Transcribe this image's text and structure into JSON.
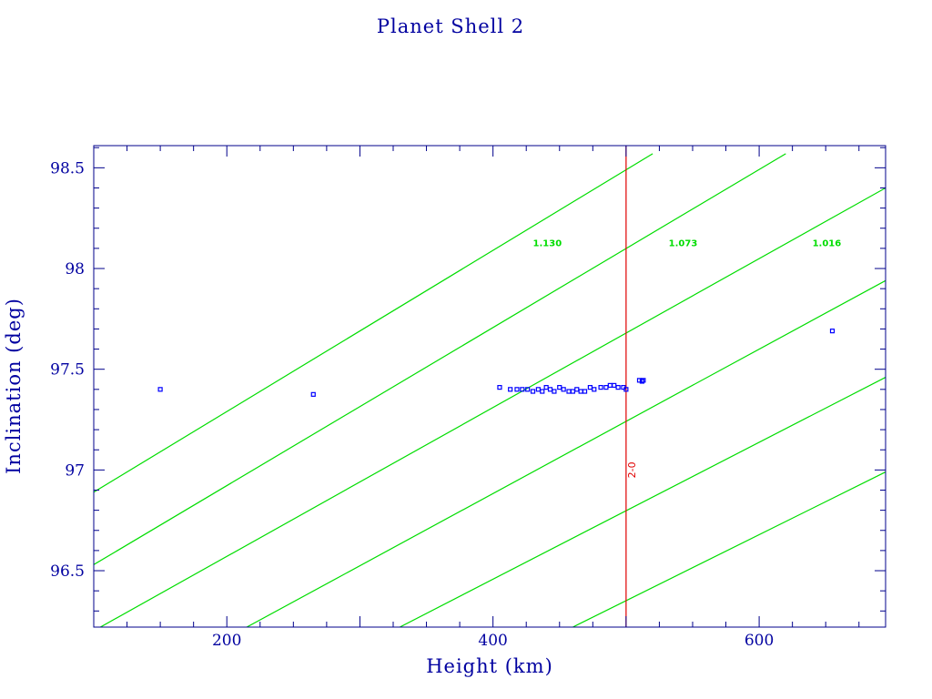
{
  "colors": {
    "axis": "#00008b",
    "text": "#0000a0",
    "points": "#0000ff",
    "guide_lines": "#00dd00",
    "marker": "#e00000"
  },
  "chart_data": {
    "type": "scatter",
    "title": "Planet Shell 2",
    "xlabel": "Height (km)",
    "ylabel": "Inclination (deg)",
    "xlim": [
      100,
      695
    ],
    "ylim": [
      96.22,
      98.61
    ],
    "x_ticks": [
      200,
      400,
      600
    ],
    "x_tick_labels": [
      "200",
      "400",
      "600"
    ],
    "y_ticks": [
      96.5,
      97,
      97.5,
      98,
      98.5
    ],
    "y_tick_labels": [
      "96.5",
      "97",
      "97.5",
      "98",
      "98.5"
    ],
    "grid": false,
    "series": [
      {
        "color": "#0000ff",
        "marker": "square",
        "points": [
          [
            150,
            97.4
          ],
          [
            265,
            97.375
          ],
          [
            405,
            97.41
          ],
          [
            413,
            97.4
          ],
          [
            418,
            97.4
          ],
          [
            422,
            97.4
          ],
          [
            426,
            97.4
          ],
          [
            430,
            97.39
          ],
          [
            434,
            97.4
          ],
          [
            437,
            97.39
          ],
          [
            440,
            97.41
          ],
          [
            443,
            97.4
          ],
          [
            446,
            97.39
          ],
          [
            450,
            97.41
          ],
          [
            453,
            97.4
          ],
          [
            457,
            97.39
          ],
          [
            460,
            97.39
          ],
          [
            463,
            97.4
          ],
          [
            466,
            97.39
          ],
          [
            469,
            97.39
          ],
          [
            473,
            97.41
          ],
          [
            476,
            97.4
          ],
          [
            481,
            97.41
          ],
          [
            485,
            97.41
          ],
          [
            488,
            97.42
          ],
          [
            491,
            97.42
          ],
          [
            494,
            97.41
          ],
          [
            498,
            97.41
          ],
          [
            500,
            97.4
          ],
          [
            510,
            97.445
          ],
          [
            512,
            97.44
          ],
          [
            513,
            97.445
          ],
          [
            655,
            97.69
          ]
        ]
      }
    ],
    "guide_lines": [
      {
        "label": "",
        "points": [
          [
            100,
            96.89
          ],
          [
            520,
            98.57
          ]
        ]
      },
      {
        "label": "",
        "points": [
          [
            100,
            96.53
          ],
          [
            620,
            98.57
          ]
        ]
      },
      {
        "label": "",
        "points": [
          [
            105,
            96.22
          ],
          [
            695,
            98.4
          ]
        ]
      },
      {
        "label": "",
        "points": [
          [
            215,
            96.22
          ],
          [
            695,
            97.94
          ]
        ]
      },
      {
        "label": "",
        "points": [
          [
            330,
            96.22
          ],
          [
            695,
            97.46
          ]
        ]
      },
      {
        "label": "",
        "points": [
          [
            460,
            96.22
          ],
          [
            695,
            96.99
          ]
        ]
      }
    ],
    "guide_line_labels": [
      {
        "text": "1.130",
        "x": 430,
        "y": 98.11
      },
      {
        "text": "1.073",
        "x": 532,
        "y": 98.11
      },
      {
        "text": "1.016",
        "x": 640,
        "y": 98.11
      }
    ],
    "vertical_markers": [
      {
        "label": "2-0",
        "x": 500
      }
    ]
  }
}
